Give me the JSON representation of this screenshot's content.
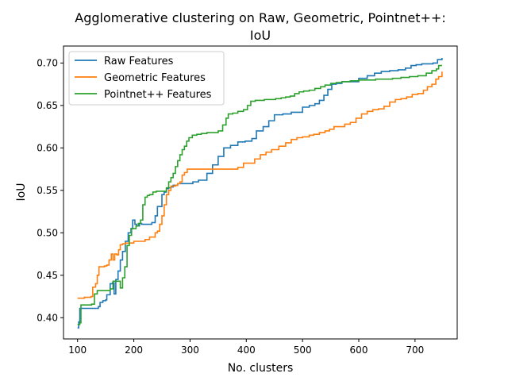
{
  "chart_data": {
    "type": "line",
    "title_lines": [
      "Agglomerative clustering on Raw, Geometric, Pointnet++:",
      "IoU"
    ],
    "xlabel": "No. clusters",
    "ylabel": "IoU",
    "xlim": [
      75,
      775
    ],
    "ylim": [
      0.375,
      0.72
    ],
    "xticks": [
      100,
      200,
      300,
      400,
      500,
      600,
      700
    ],
    "yticks": [
      0.4,
      0.45,
      0.5,
      0.55,
      0.6,
      0.65,
      0.7
    ],
    "ytick_labels": [
      "0.40",
      "0.45",
      "0.50",
      "0.55",
      "0.60",
      "0.65",
      "0.70"
    ],
    "grid": false,
    "legend_position": "top-left",
    "series": [
      {
        "name": "Raw Features",
        "color": "#1f77b4",
        "points": [
          [
            100,
            0.388
          ],
          [
            102,
            0.395
          ],
          [
            104,
            0.411
          ],
          [
            135,
            0.411
          ],
          [
            137,
            0.413
          ],
          [
            140,
            0.418
          ],
          [
            145,
            0.42
          ],
          [
            150,
            0.421
          ],
          [
            152,
            0.427
          ],
          [
            158,
            0.44
          ],
          [
            162,
            0.441
          ],
          [
            165,
            0.428
          ],
          [
            168,
            0.445
          ],
          [
            172,
            0.455
          ],
          [
            176,
            0.468
          ],
          [
            180,
            0.478
          ],
          [
            185,
            0.49
          ],
          [
            190,
            0.5
          ],
          [
            195,
            0.505
          ],
          [
            198,
            0.515
          ],
          [
            202,
            0.51
          ],
          [
            205,
            0.508
          ],
          [
            210,
            0.511
          ],
          [
            214,
            0.51
          ],
          [
            220,
            0.51
          ],
          [
            228,
            0.51
          ],
          [
            232,
            0.512
          ],
          [
            238,
            0.52
          ],
          [
            242,
            0.531
          ],
          [
            246,
            0.531
          ],
          [
            250,
            0.545
          ],
          [
            254,
            0.548
          ],
          [
            258,
            0.552
          ],
          [
            262,
            0.553
          ],
          [
            266,
            0.554
          ],
          [
            270,
            0.556
          ],
          [
            278,
            0.558
          ],
          [
            285,
            0.558
          ],
          [
            295,
            0.558
          ],
          [
            305,
            0.56
          ],
          [
            315,
            0.562
          ],
          [
            330,
            0.57
          ],
          [
            340,
            0.58
          ],
          [
            350,
            0.59
          ],
          [
            360,
            0.6
          ],
          [
            372,
            0.603
          ],
          [
            385,
            0.607
          ],
          [
            398,
            0.608
          ],
          [
            410,
            0.611
          ],
          [
            418,
            0.62
          ],
          [
            430,
            0.625
          ],
          [
            440,
            0.632
          ],
          [
            450,
            0.639
          ],
          [
            465,
            0.64
          ],
          [
            480,
            0.642
          ],
          [
            490,
            0.642
          ],
          [
            500,
            0.648
          ],
          [
            512,
            0.65
          ],
          [
            522,
            0.652
          ],
          [
            530,
            0.656
          ],
          [
            538,
            0.662
          ],
          [
            545,
            0.669
          ],
          [
            552,
            0.675
          ],
          [
            560,
            0.676
          ],
          [
            570,
            0.678
          ],
          [
            580,
            0.678
          ],
          [
            592,
            0.678
          ],
          [
            600,
            0.682
          ],
          [
            615,
            0.685
          ],
          [
            628,
            0.688
          ],
          [
            640,
            0.69
          ],
          [
            655,
            0.691
          ],
          [
            670,
            0.692
          ],
          [
            683,
            0.694
          ],
          [
            693,
            0.697
          ],
          [
            702,
            0.698
          ],
          [
            712,
            0.699
          ],
          [
            720,
            0.699
          ],
          [
            732,
            0.7
          ],
          [
            740,
            0.704
          ],
          [
            748,
            0.706
          ]
        ]
      },
      {
        "name": "Geometric Features",
        "color": "#ff7f0e",
        "points": [
          [
            100,
            0.423
          ],
          [
            112,
            0.424
          ],
          [
            124,
            0.425
          ],
          [
            127,
            0.436
          ],
          [
            132,
            0.44
          ],
          [
            135,
            0.45
          ],
          [
            138,
            0.46
          ],
          [
            142,
            0.46
          ],
          [
            148,
            0.461
          ],
          [
            152,
            0.462
          ],
          [
            156,
            0.468
          ],
          [
            160,
            0.475
          ],
          [
            163,
            0.468
          ],
          [
            166,
            0.475
          ],
          [
            170,
            0.474
          ],
          [
            173,
            0.48
          ],
          [
            176,
            0.486
          ],
          [
            180,
            0.487
          ],
          [
            185,
            0.488
          ],
          [
            192,
            0.488
          ],
          [
            200,
            0.49
          ],
          [
            210,
            0.49
          ],
          [
            220,
            0.492
          ],
          [
            228,
            0.495
          ],
          [
            234,
            0.495
          ],
          [
            238,
            0.5
          ],
          [
            242,
            0.502
          ],
          [
            246,
            0.51
          ],
          [
            250,
            0.52
          ],
          [
            254,
            0.533
          ],
          [
            258,
            0.545
          ],
          [
            262,
            0.55
          ],
          [
            266,
            0.555
          ],
          [
            270,
            0.555
          ],
          [
            274,
            0.556
          ],
          [
            278,
            0.558
          ],
          [
            282,
            0.56
          ],
          [
            286,
            0.568
          ],
          [
            290,
            0.571
          ],
          [
            295,
            0.575
          ],
          [
            300,
            0.575
          ],
          [
            310,
            0.575
          ],
          [
            325,
            0.575
          ],
          [
            345,
            0.575
          ],
          [
            365,
            0.575
          ],
          [
            385,
            0.577
          ],
          [
            395,
            0.582
          ],
          [
            405,
            0.582
          ],
          [
            415,
            0.587
          ],
          [
            425,
            0.592
          ],
          [
            435,
            0.595
          ],
          [
            445,
            0.598
          ],
          [
            458,
            0.602
          ],
          [
            470,
            0.606
          ],
          [
            480,
            0.61
          ],
          [
            490,
            0.612
          ],
          [
            500,
            0.613
          ],
          [
            512,
            0.615
          ],
          [
            520,
            0.616
          ],
          [
            530,
            0.618
          ],
          [
            540,
            0.62
          ],
          [
            548,
            0.622
          ],
          [
            556,
            0.625
          ],
          [
            565,
            0.625
          ],
          [
            575,
            0.628
          ],
          [
            585,
            0.63
          ],
          [
            595,
            0.635
          ],
          [
            605,
            0.64
          ],
          [
            615,
            0.643
          ],
          [
            625,
            0.645
          ],
          [
            635,
            0.646
          ],
          [
            645,
            0.649
          ],
          [
            655,
            0.654
          ],
          [
            665,
            0.657
          ],
          [
            675,
            0.658
          ],
          [
            685,
            0.66
          ],
          [
            695,
            0.663
          ],
          [
            705,
            0.664
          ],
          [
            715,
            0.668
          ],
          [
            722,
            0.672
          ],
          [
            730,
            0.675
          ],
          [
            737,
            0.681
          ],
          [
            742,
            0.684
          ],
          [
            748,
            0.69
          ]
        ]
      },
      {
        "name": "Pointnet++ Features",
        "color": "#2ca02c",
        "points": [
          [
            100,
            0.392
          ],
          [
            104,
            0.394
          ],
          [
            106,
            0.415
          ],
          [
            125,
            0.416
          ],
          [
            130,
            0.428
          ],
          [
            135,
            0.432
          ],
          [
            150,
            0.432
          ],
          [
            158,
            0.434
          ],
          [
            163,
            0.443
          ],
          [
            168,
            0.443
          ],
          [
            172,
            0.443
          ],
          [
            176,
            0.435
          ],
          [
            180,
            0.447
          ],
          [
            184,
            0.46
          ],
          [
            188,
            0.485
          ],
          [
            192,
            0.497
          ],
          [
            196,
            0.505
          ],
          [
            200,
            0.505
          ],
          [
            204,
            0.508
          ],
          [
            208,
            0.511
          ],
          [
            212,
            0.515
          ],
          [
            216,
            0.533
          ],
          [
            220,
            0.542
          ],
          [
            224,
            0.544
          ],
          [
            228,
            0.545
          ],
          [
            234,
            0.548
          ],
          [
            240,
            0.549
          ],
          [
            250,
            0.549
          ],
          [
            258,
            0.553
          ],
          [
            262,
            0.56
          ],
          [
            266,
            0.565
          ],
          [
            270,
            0.57
          ],
          [
            274,
            0.578
          ],
          [
            278,
            0.585
          ],
          [
            282,
            0.592
          ],
          [
            286,
            0.598
          ],
          [
            290,
            0.602
          ],
          [
            294,
            0.608
          ],
          [
            298,
            0.612
          ],
          [
            304,
            0.615
          ],
          [
            312,
            0.616
          ],
          [
            320,
            0.617
          ],
          [
            330,
            0.618
          ],
          [
            340,
            0.618
          ],
          [
            350,
            0.62
          ],
          [
            358,
            0.627
          ],
          [
            364,
            0.635
          ],
          [
            368,
            0.64
          ],
          [
            376,
            0.641
          ],
          [
            385,
            0.643
          ],
          [
            395,
            0.645
          ],
          [
            402,
            0.65
          ],
          [
            408,
            0.655
          ],
          [
            416,
            0.656
          ],
          [
            424,
            0.656
          ],
          [
            432,
            0.657
          ],
          [
            442,
            0.657
          ],
          [
            452,
            0.658
          ],
          [
            462,
            0.659
          ],
          [
            470,
            0.66
          ],
          [
            478,
            0.661
          ],
          [
            486,
            0.664
          ],
          [
            494,
            0.666
          ],
          [
            502,
            0.667
          ],
          [
            512,
            0.668
          ],
          [
            522,
            0.67
          ],
          [
            532,
            0.672
          ],
          [
            540,
            0.674
          ],
          [
            550,
            0.676
          ],
          [
            560,
            0.677
          ],
          [
            570,
            0.678
          ],
          [
            585,
            0.679
          ],
          [
            600,
            0.68
          ],
          [
            615,
            0.68
          ],
          [
            630,
            0.681
          ],
          [
            645,
            0.681
          ],
          [
            660,
            0.682
          ],
          [
            675,
            0.683
          ],
          [
            690,
            0.684
          ],
          [
            705,
            0.685
          ],
          [
            720,
            0.688
          ],
          [
            730,
            0.691
          ],
          [
            738,
            0.693
          ],
          [
            742,
            0.697
          ],
          [
            748,
            0.697
          ]
        ]
      }
    ]
  }
}
